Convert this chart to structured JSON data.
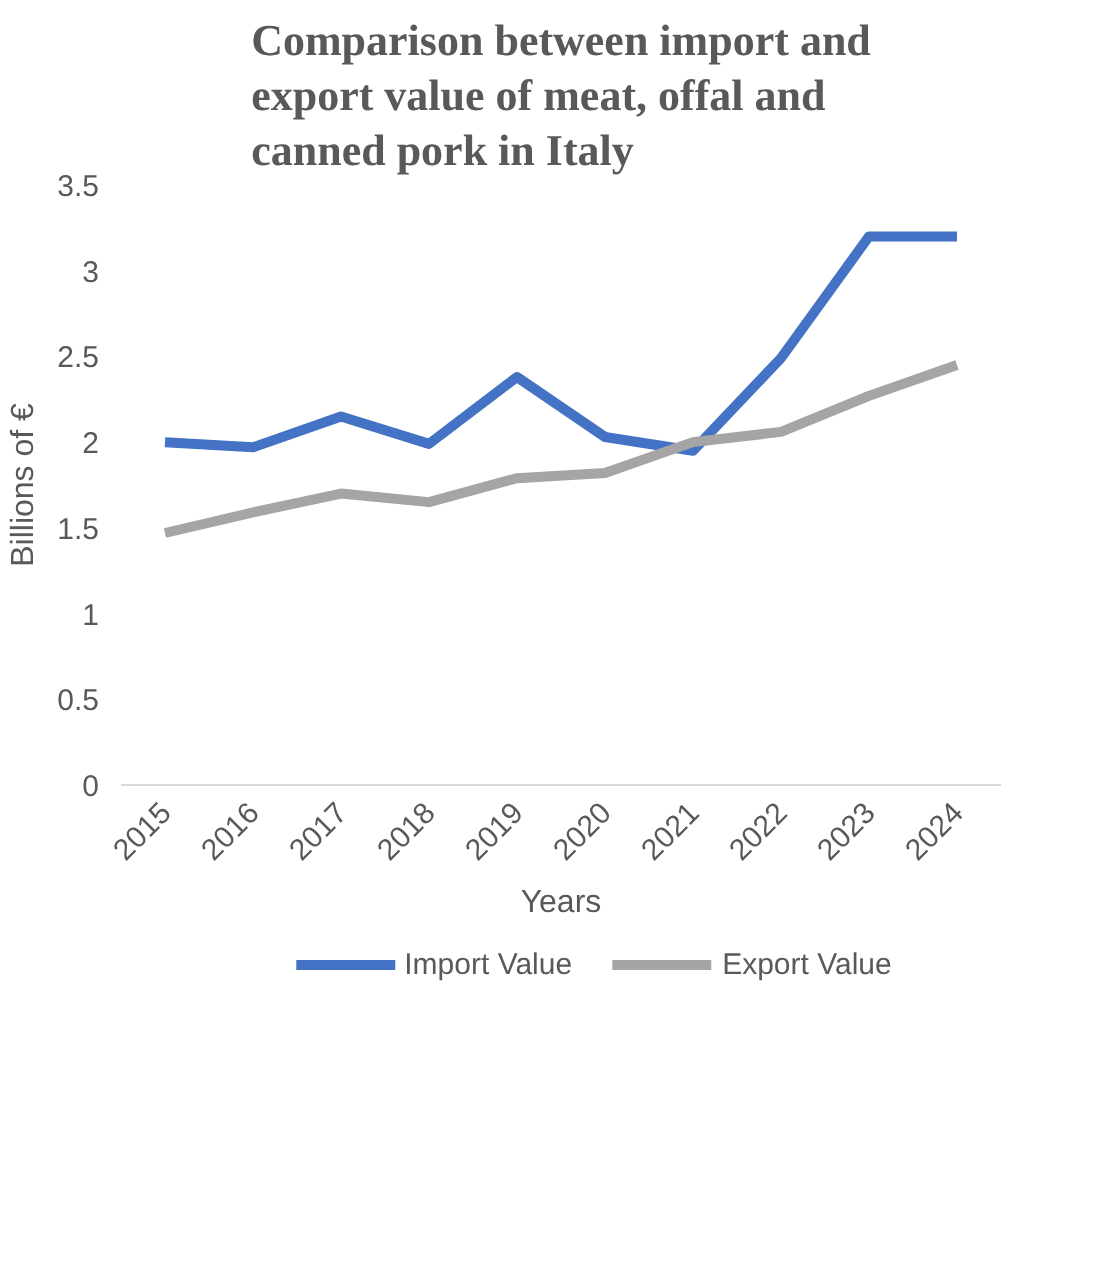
{
  "chart_data": {
    "type": "line",
    "title": "Comparison between import and export value of meat, offal and canned pork in Italy",
    "categories": [
      "2015",
      "2016",
      "2017",
      "2018",
      "2019",
      "2020",
      "2021",
      "2022",
      "2023",
      "2024"
    ],
    "series": [
      {
        "name": "Import Value",
        "color": "#4472c4",
        "values": [
          2.0,
          1.97,
          2.15,
          1.99,
          2.38,
          2.03,
          1.95,
          2.49,
          3.2,
          3.2
        ]
      },
      {
        "name": "Export Value",
        "color": "#a5a5a5",
        "values": [
          1.47,
          1.59,
          1.7,
          1.65,
          1.79,
          1.82,
          2.0,
          2.06,
          2.27,
          2.45
        ]
      }
    ],
    "xlabel": "Years",
    "ylabel": "Billions of €",
    "ylim": [
      0,
      3.5
    ],
    "yticks": [
      0,
      0.5,
      1,
      1.5,
      2,
      2.5,
      3,
      3.5
    ],
    "grid": false,
    "legend": "bottom",
    "marker": "none",
    "line_style": "solid"
  }
}
